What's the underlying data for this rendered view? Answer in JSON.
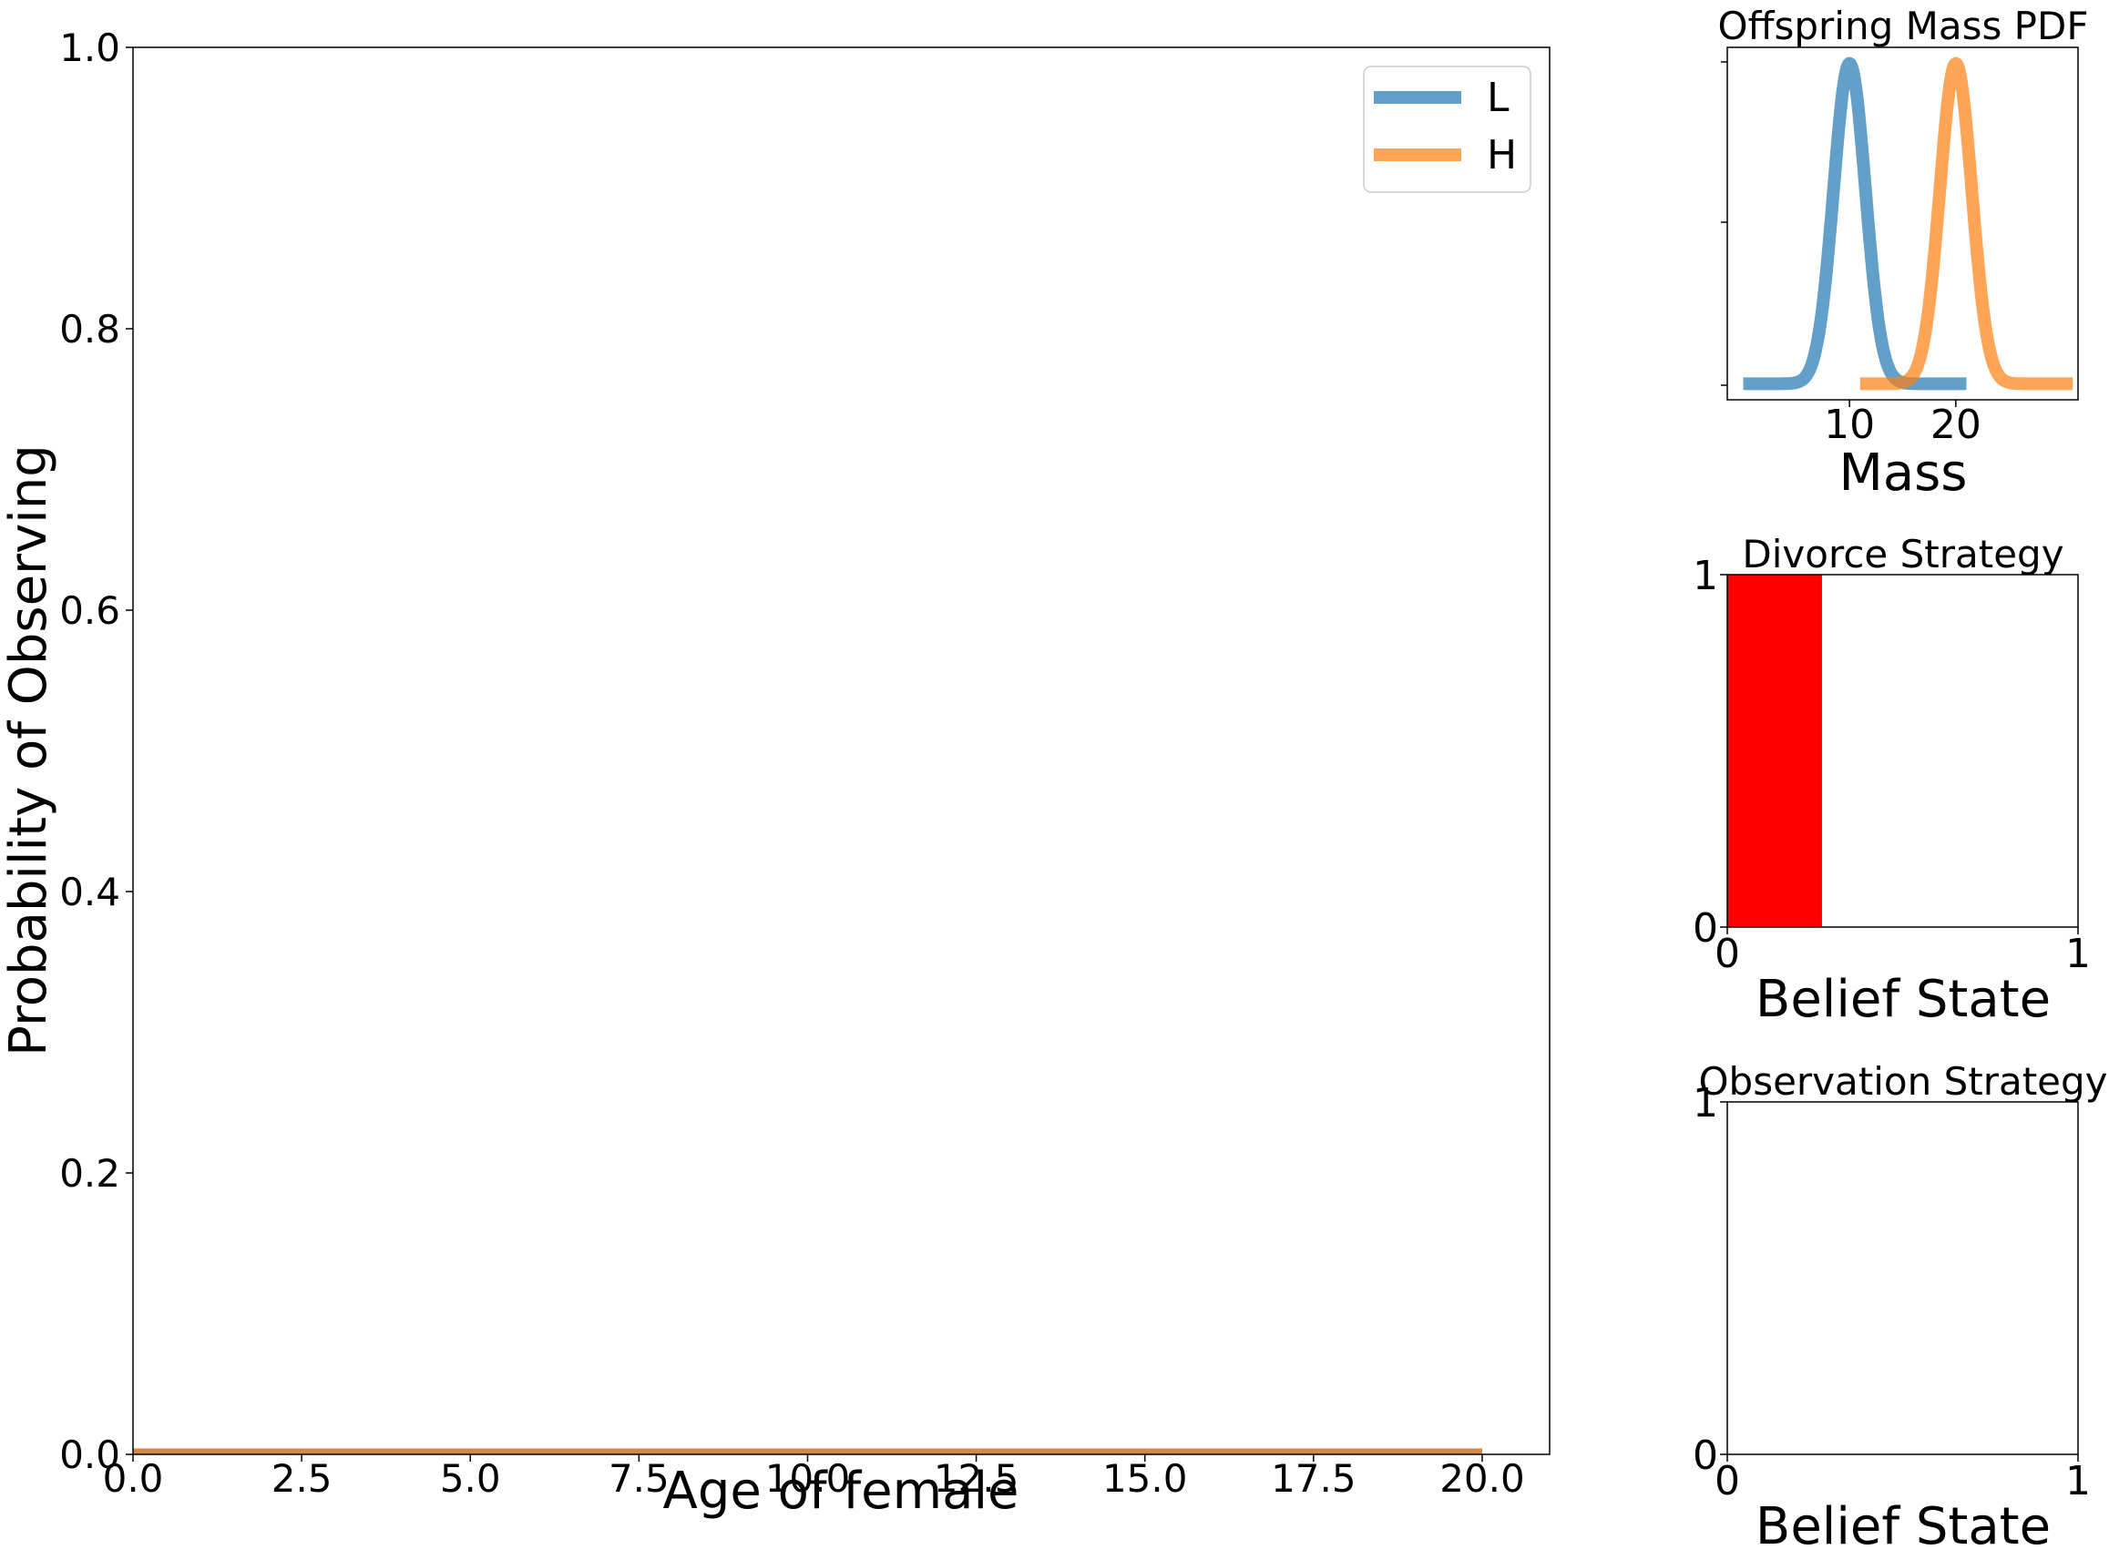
{
  "colors": {
    "L": "#1f77b4",
    "H": "#ff7f0e",
    "divorce_fill": "#ff0000"
  },
  "chart_data": [
    {
      "id": "main",
      "type": "line",
      "xlabel": "Age of female",
      "ylabel": "Probability of Observing",
      "xlim": [
        0,
        21
      ],
      "ylim": [
        0,
        1
      ],
      "xticks": [
        0,
        2.5,
        5,
        7.5,
        10,
        12.5,
        15,
        17.5,
        20
      ],
      "xtick_labels": [
        "0.0",
        "2.5",
        "5.0",
        "7.5",
        "10.0",
        "12.5",
        "15.0",
        "17.5",
        "20.0"
      ],
      "yticks": [
        0,
        0.2,
        0.4,
        0.6,
        0.8,
        1.0
      ],
      "ytick_labels": [
        "0.0",
        "0.2",
        "0.4",
        "0.6",
        "0.8",
        "1.0"
      ],
      "legend": {
        "placement": "top-right",
        "entries": [
          "L",
          "H"
        ]
      },
      "series": [
        {
          "name": "L",
          "x": [
            0,
            20
          ],
          "y": [
            0,
            0
          ]
        },
        {
          "name": "H",
          "x": [
            0,
            20
          ],
          "y": [
            0,
            0
          ]
        }
      ]
    },
    {
      "id": "pdf",
      "type": "line",
      "title": "Offspring Mass PDF",
      "xlabel": "Mass",
      "xlim": [
        -1.5,
        31.5
      ],
      "ylim": [
        -0.005,
        0.105
      ],
      "xticks": [
        10,
        20
      ],
      "xtick_labels": [
        "10",
        "20"
      ],
      "series": [
        {
          "name": "L",
          "mean": 10,
          "sd": 1.5,
          "peak": 0.1,
          "x_range": [
            0,
            21
          ]
        },
        {
          "name": "H",
          "mean": 20,
          "sd": 1.5,
          "peak": 0.1,
          "x_range": [
            11,
            31
          ]
        }
      ]
    },
    {
      "id": "divorce",
      "type": "area",
      "title": "Divorce Strategy",
      "xlabel": "Belief State",
      "xlim": [
        0,
        1
      ],
      "ylim": [
        0,
        1
      ],
      "xticks": [
        0,
        1
      ],
      "xtick_labels": [
        "0",
        "1"
      ],
      "yticks": [
        0,
        1
      ],
      "ytick_labels": [
        "0",
        "1"
      ],
      "divorce_region": {
        "x": [
          0,
          0.27
        ],
        "value": 1
      }
    },
    {
      "id": "observe",
      "type": "area",
      "title": "Observation Strategy",
      "xlabel": "Belief State",
      "xlim": [
        0,
        1
      ],
      "ylim": [
        0,
        1
      ],
      "xticks": [
        0,
        1
      ],
      "xtick_labels": [
        "0",
        "1"
      ],
      "yticks": [
        0,
        1
      ],
      "ytick_labels": [
        "0",
        "1"
      ]
    }
  ]
}
